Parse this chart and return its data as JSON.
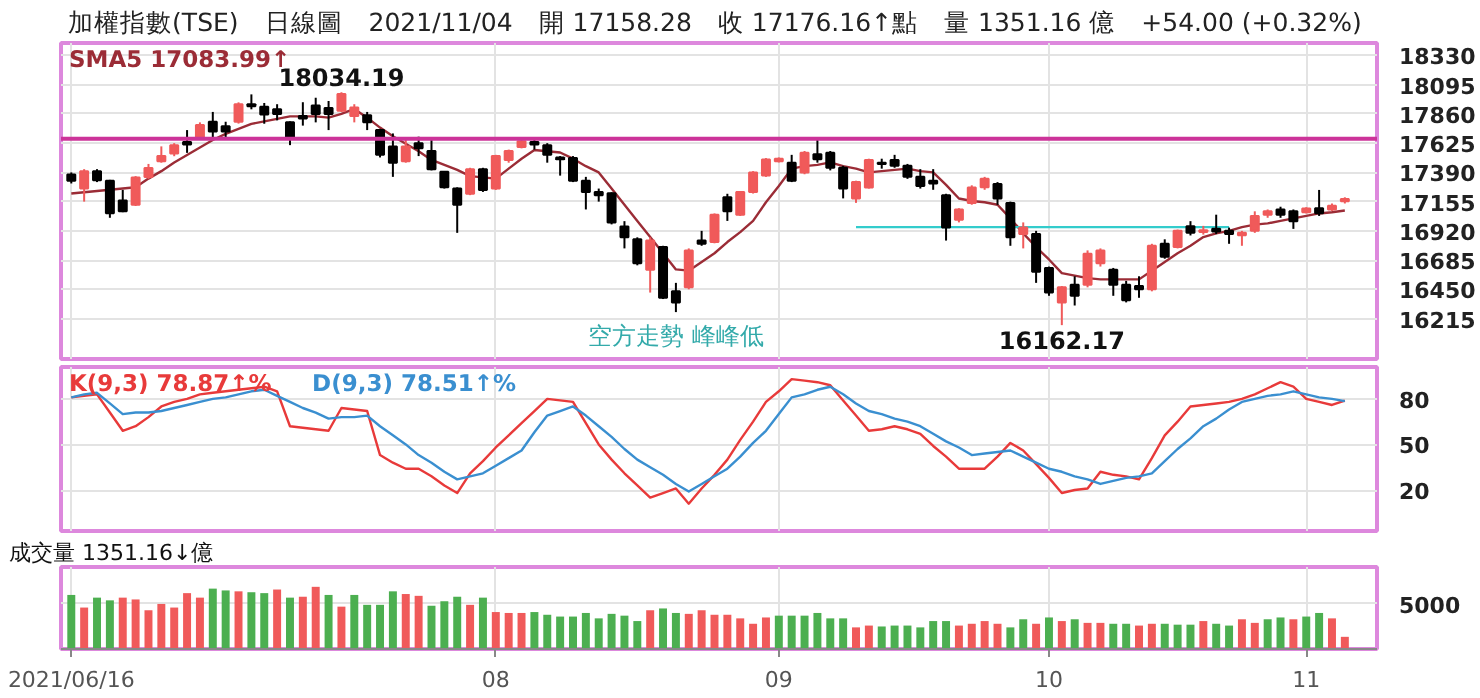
{
  "chart_data": [
    {
      "type": "candlestick",
      "title": "加權指數(TSE)　日線圖　2021/11/04　開 17158.28　收 17176.16↑點　量 1351.16 億　+54.00 (+0.32%)",
      "annotations": [
        "18034.19",
        "16162.17",
        "空方走勢 峰峰低"
      ],
      "categories": [
        "2021/06/16",
        null,
        null,
        null,
        null,
        null,
        null,
        null,
        null,
        null,
        null,
        null,
        null,
        null,
        null,
        null,
        null,
        null,
        null,
        null,
        null,
        null,
        null,
        null,
        null,
        null,
        null,
        null,
        null,
        null,
        null,
        null,
        null,
        "08",
        null,
        null,
        null,
        null,
        null,
        null,
        null,
        null,
        null,
        null,
        null,
        null,
        null,
        null,
        null,
        null,
        null,
        null,
        null,
        null,
        null,
        "09",
        null,
        null,
        null,
        null,
        null,
        null,
        null,
        null,
        null,
        null,
        null,
        null,
        null,
        null,
        null,
        null,
        null,
        null,
        null,
        null,
        "10",
        null,
        null,
        null,
        null,
        null,
        null,
        null,
        null,
        null,
        null,
        null,
        null,
        null,
        null,
        null,
        null,
        null,
        null,
        null,
        "11",
        null,
        null,
        null
      ],
      "ohlc": [
        [
          17374,
          17390,
          17301,
          17322
        ],
        [
          17260,
          17416,
          17155,
          17400
        ],
        [
          17400,
          17416,
          17312,
          17327
        ],
        [
          17322,
          17330,
          17025,
          17061
        ],
        [
          17165,
          17249,
          17070,
          17077
        ],
        [
          17129,
          17360,
          17120,
          17348
        ],
        [
          17353,
          17458,
          17338,
          17426
        ],
        [
          17479,
          17599,
          17468,
          17521
        ],
        [
          17541,
          17625,
          17520,
          17609
        ],
        [
          17635,
          17730,
          17547,
          17614
        ],
        [
          17667,
          17792,
          17651,
          17771
        ],
        [
          17797,
          17876,
          17651,
          17719
        ],
        [
          17761,
          17797,
          17667,
          17719
        ],
        [
          17797,
          17953,
          17782,
          17938
        ],
        [
          17938,
          18017,
          17897,
          17922
        ],
        [
          17917,
          17948,
          17781,
          17855
        ],
        [
          17897,
          17938,
          17808,
          17860
        ],
        [
          17792,
          17800,
          17609,
          17667
        ],
        [
          17844,
          17954,
          17766,
          17823
        ],
        [
          17928,
          17990,
          17792,
          17860
        ],
        [
          17907,
          17964,
          17730,
          17860
        ],
        [
          17886,
          18034.19,
          17876,
          18020
        ],
        [
          17844,
          17938,
          17792,
          17912
        ],
        [
          17850,
          17876,
          17730,
          17792
        ],
        [
          17730,
          17740,
          17510,
          17531
        ],
        [
          17599,
          17703,
          17354,
          17468
        ],
        [
          17479,
          17651,
          17468,
          17599
        ],
        [
          17625,
          17677,
          17521,
          17583
        ],
        [
          17562,
          17651,
          17406,
          17416
        ],
        [
          17395,
          17400,
          17260,
          17270
        ],
        [
          17260,
          17270,
          16904,
          17129
        ],
        [
          17218,
          17427,
          17207,
          17416
        ],
        [
          17416,
          17427,
          17233,
          17249
        ],
        [
          17260,
          17531,
          17249,
          17521
        ],
        [
          17489,
          17573,
          17468,
          17562
        ],
        [
          17594,
          17651,
          17583,
          17641
        ],
        [
          17635,
          17651,
          17573,
          17614
        ],
        [
          17609,
          17625,
          17468,
          17531
        ],
        [
          17510,
          17521,
          17364,
          17495
        ],
        [
          17505,
          17521,
          17312,
          17322
        ],
        [
          17322,
          17354,
          17092,
          17233
        ],
        [
          17233,
          17260,
          17155,
          17207
        ],
        [
          17223,
          17230,
          16972,
          16988
        ],
        [
          16956,
          16998,
          16779,
          16868
        ],
        [
          16852,
          16868,
          16643,
          16659
        ],
        [
          16607,
          16868,
          16424,
          16842
        ],
        [
          16790,
          16800,
          16372,
          16382
        ],
        [
          16434,
          16502,
          16267,
          16345
        ],
        [
          16466,
          16779,
          16450,
          16763
        ],
        [
          16842,
          16920,
          16800,
          16816
        ],
        [
          16831,
          17060,
          16820,
          17050
        ],
        [
          17191,
          17218,
          17000,
          17077
        ],
        [
          17050,
          17233,
          17040,
          17233
        ],
        [
          17233,
          17400,
          17220,
          17390
        ],
        [
          17364,
          17505,
          17354,
          17494
        ],
        [
          17479,
          17510,
          17470,
          17499
        ],
        [
          17468,
          17531,
          17312,
          17322
        ],
        [
          17390,
          17562,
          17375,
          17547
        ],
        [
          17536,
          17651,
          17468,
          17495
        ],
        [
          17547,
          17562,
          17406,
          17427
        ],
        [
          17427,
          17443,
          17181,
          17260
        ],
        [
          17181,
          17323,
          17145,
          17312
        ],
        [
          17269,
          17500,
          17260,
          17489
        ],
        [
          17468,
          17500,
          17420,
          17458
        ],
        [
          17489,
          17531,
          17427,
          17443
        ],
        [
          17443,
          17458,
          17338,
          17354
        ],
        [
          17354,
          17416,
          17260,
          17281
        ],
        [
          17322,
          17416,
          17250,
          17301
        ],
        [
          17207,
          17218,
          16842,
          16946
        ],
        [
          17009,
          17102,
          16988,
          17092
        ],
        [
          17144,
          17286,
          17130,
          17269
        ],
        [
          17270,
          17354,
          17250,
          17338
        ],
        [
          17296,
          17312,
          17129,
          17181
        ],
        [
          17144,
          17155,
          16800,
          16868
        ],
        [
          16894,
          16988,
          16779,
          16946
        ],
        [
          16894,
          16920,
          16502,
          16591
        ],
        [
          16622,
          16633,
          16398,
          16424
        ],
        [
          16345,
          16476,
          16162.17,
          16466
        ],
        [
          16487,
          16555,
          16320,
          16398
        ],
        [
          16487,
          16763,
          16466,
          16737
        ],
        [
          16659,
          16779,
          16633,
          16763
        ],
        [
          16607,
          16622,
          16398,
          16487
        ],
        [
          16487,
          16518,
          16345,
          16362
        ],
        [
          16476,
          16555,
          16382,
          16450
        ],
        [
          16450,
          16816,
          16434,
          16800
        ],
        [
          16816,
          16852,
          16696,
          16711
        ],
        [
          16790,
          16930,
          16779,
          16920
        ],
        [
          16957,
          16998,
          16883,
          16904
        ],
        [
          16910,
          16960,
          16890,
          16925
        ],
        [
          16936,
          17050,
          16894,
          16915
        ],
        [
          16920,
          16946,
          16816,
          16894
        ],
        [
          16884,
          16920,
          16800,
          16904
        ],
        [
          16920,
          17077,
          16904,
          17040
        ],
        [
          17050,
          17092,
          17025,
          17077
        ],
        [
          17092,
          17114,
          17025,
          17050
        ],
        [
          17077,
          17092,
          16936,
          16998
        ],
        [
          17070,
          17110,
          17060,
          17100
        ],
        [
          17102,
          17249,
          17040,
          17061
        ],
        [
          17092,
          17140,
          17080,
          17122.16
        ],
        [
          17158.28,
          17190,
          17140,
          17176.16
        ]
      ],
      "colors": [
        "#000000",
        "#f05a5a",
        "#000000",
        "#000000",
        "#000000",
        "#f05a5a",
        "#f05a5a",
        "#f05a5a",
        "#f05a5a",
        "#000000",
        "#f05a5a",
        "#000000",
        "#000000",
        "#f05a5a",
        "#000000",
        "#000000",
        "#000000",
        "#000000",
        "#000000",
        "#000000",
        "#000000",
        "#f05a5a",
        "#f05a5a",
        "#000000",
        "#000000",
        "#000000",
        "#f05a5a",
        "#000000",
        "#000000",
        "#000000",
        "#000000",
        "#f05a5a",
        "#000000",
        "#f05a5a",
        "#f05a5a",
        "#f05a5a",
        "#000000",
        "#000000",
        "#000000",
        "#000000",
        "#000000",
        "#000000",
        "#000000",
        "#000000",
        "#000000",
        "#f05a5a",
        "#000000",
        "#000000",
        "#f05a5a",
        "#000000",
        "#f05a5a",
        "#000000",
        "#f05a5a",
        "#f05a5a",
        "#f05a5a",
        "#f05a5a",
        "#000000",
        "#f05a5a",
        "#000000",
        "#000000",
        "#000000",
        "#f05a5a",
        "#f05a5a",
        "#000000",
        "#000000",
        "#000000",
        "#000000",
        "#000000",
        "#000000",
        "#f05a5a",
        "#f05a5a",
        "#f05a5a",
        "#000000",
        "#000000",
        "#f05a5a",
        "#000000",
        "#000000",
        "#f05a5a",
        "#000000",
        "#f05a5a",
        "#f05a5a",
        "#000000",
        "#000000",
        "#000000",
        "#f05a5a",
        "#000000",
        "#f05a5a",
        "#000000",
        "#f05a5a",
        "#000000",
        "#000000",
        "#f05a5a",
        "#f05a5a",
        "#f05a5a",
        "#000000",
        "#000000",
        "#f05a5a",
        "#000000",
        "#f05a5a",
        "#f05a5a"
      ],
      "series": [
        {
          "name": "SMA5 17083.99↑",
          "type": "line",
          "color": "#9b2c36",
          "values": [
            17220,
            17230,
            17240,
            17250,
            17260,
            17270,
            17340,
            17400,
            17470,
            17530,
            17590,
            17650,
            17700,
            17740,
            17780,
            17800,
            17820,
            17840,
            17840,
            17840,
            17830,
            17860,
            17900,
            17830,
            17750,
            17680,
            17620,
            17560,
            17490,
            17450,
            17410,
            17360,
            17350,
            17340,
            17420,
            17500,
            17570,
            17560,
            17550,
            17500,
            17440,
            17390,
            17260,
            17130,
            17000,
            16870,
            16740,
            16610,
            16600,
            16670,
            16740,
            16830,
            16910,
            17000,
            17150,
            17280,
            17420,
            17440,
            17450,
            17470,
            17440,
            17420,
            17390,
            17400,
            17410,
            17420,
            17400,
            17390,
            17290,
            17180,
            17160,
            17150,
            17130,
            17020,
            16900,
            16790,
            16690,
            16580,
            16560,
            16540,
            16530,
            16530,
            16530,
            16530,
            16600,
            16670,
            16740,
            16800,
            16870,
            16900,
            16920,
            16950,
            16970,
            16980,
            17000,
            17020,
            17040,
            17060,
            17070,
            17083.99
          ]
        },
        {
          "type": "line",
          "color": "#33cccc",
          "values": [
            null,
            null,
            null,
            null,
            null,
            null,
            null,
            null,
            null,
            null,
            null,
            null,
            null,
            null,
            null,
            null,
            null,
            null,
            null,
            null,
            null,
            null,
            null,
            null,
            null,
            null,
            null,
            null,
            null,
            null,
            null,
            null,
            null,
            null,
            null,
            null,
            null,
            null,
            null,
            null,
            null,
            null,
            null,
            null,
            null,
            null,
            null,
            null,
            null,
            null,
            null,
            null,
            null,
            null,
            null,
            null,
            null,
            null,
            null,
            null,
            null,
            16950,
            16950,
            16950,
            16950,
            16950,
            16950,
            16950,
            16950,
            16950,
            16950,
            16950,
            16950,
            16950,
            16950,
            16950,
            16950,
            16950,
            16950,
            16950,
            16950,
            16950,
            16950,
            16950,
            16950,
            16950,
            16950,
            16950,
            16950,
            16950,
            16950,
            null,
            null,
            null,
            null,
            null,
            null,
            null,
            null,
            null
          ]
        }
      ],
      "ref_lines": [
        {
          "axis": "y",
          "value": 17660,
          "color": "#cc3399"
        }
      ],
      "ylim": [
        15890,
        18430
      ],
      "yticks": [
        16215,
        16450,
        16685,
        16920,
        17155,
        17390,
        17625,
        17860,
        18095,
        18330
      ],
      "grid": true,
      "legend": "top left",
      "tick_labels": "y"
    },
    {
      "type": "line",
      "categories": [
        "2021/06/16",
        null,
        null,
        null,
        null,
        null,
        null,
        null,
        null,
        null,
        null,
        null,
        null,
        null,
        null,
        null,
        null,
        null,
        null,
        null,
        null,
        null,
        null,
        null,
        null,
        null,
        null,
        null,
        null,
        null,
        null,
        null,
        null,
        "08",
        null,
        null,
        null,
        null,
        null,
        null,
        null,
        null,
        null,
        null,
        null,
        null,
        null,
        null,
        null,
        null,
        null,
        null,
        null,
        null,
        null,
        "09",
        null,
        null,
        null,
        null,
        null,
        null,
        null,
        null,
        null,
        null,
        null,
        null,
        null,
        null,
        null,
        null,
        null,
        null,
        null,
        null,
        "10",
        null,
        null,
        null,
        null,
        null,
        null,
        null,
        null,
        null,
        null,
        null,
        null,
        null,
        null,
        null,
        null,
        null,
        null,
        null,
        "11",
        null,
        null,
        null
      ],
      "series": [
        {
          "name": "K(9,3) 78.87↑%",
          "color": "#e83a3a",
          "values": [
            81,
            82,
            83,
            71,
            59,
            62,
            68,
            75,
            78,
            80,
            83,
            84,
            85,
            86,
            87,
            88,
            85,
            62,
            61,
            60,
            59,
            74,
            73,
            72,
            43,
            38,
            34,
            34,
            29,
            23,
            18,
            31,
            39,
            48,
            56,
            64,
            72,
            80,
            79,
            78,
            64,
            50,
            40,
            31,
            23,
            15,
            18,
            21,
            11,
            21,
            30,
            40,
            53,
            65,
            78,
            85,
            93,
            92,
            91,
            89,
            79,
            69,
            59,
            60,
            62,
            60,
            57,
            49,
            42,
            34,
            34,
            34,
            42,
            51,
            46,
            37,
            28,
            18,
            20,
            21,
            32,
            30,
            29,
            27,
            41,
            56,
            65,
            75,
            76,
            77,
            78,
            80,
            83,
            87,
            91,
            88,
            80,
            78,
            76,
            78.87
          ]
        },
        {
          "name": "D(9,3) 78.51↑%",
          "color": "#3a8fd0",
          "values": [
            81,
            83,
            84,
            77,
            70,
            71,
            71,
            72,
            74,
            76,
            78,
            80,
            81,
            83,
            85,
            86,
            82,
            78,
            74,
            71,
            67,
            68,
            68,
            69,
            62,
            56,
            50,
            43,
            38,
            32,
            27,
            29,
            31,
            36,
            41,
            46,
            58,
            69,
            72,
            75,
            69,
            62,
            55,
            47,
            40,
            35,
            30,
            24,
            19,
            24,
            29,
            34,
            42,
            51,
            59,
            70,
            81,
            83,
            86,
            88,
            83,
            77,
            72,
            70,
            67,
            65,
            62,
            57,
            52,
            48,
            43,
            44,
            45,
            46,
            42,
            38,
            34,
            32,
            29,
            27,
            24,
            26,
            28,
            29,
            31,
            39,
            47,
            54,
            62,
            67,
            73,
            78,
            80,
            82,
            83,
            85,
            83,
            81,
            80,
            78.51
          ]
        }
      ],
      "ylim": [
        -7,
        101
      ],
      "yticks": [
        20,
        50,
        80
      ],
      "grid": true,
      "legend": "top left",
      "tick_labels": "y"
    },
    {
      "type": "bar",
      "categories": [
        "2021/06/16",
        null,
        null,
        null,
        null,
        null,
        null,
        null,
        null,
        null,
        null,
        null,
        null,
        null,
        null,
        null,
        null,
        null,
        null,
        null,
        null,
        null,
        null,
        null,
        null,
        null,
        null,
        null,
        null,
        null,
        null,
        null,
        null,
        "08",
        null,
        null,
        null,
        null,
        null,
        null,
        null,
        null,
        null,
        null,
        null,
        null,
        null,
        null,
        null,
        null,
        null,
        null,
        null,
        null,
        null,
        "09",
        null,
        null,
        null,
        null,
        null,
        null,
        null,
        null,
        null,
        null,
        null,
        null,
        null,
        null,
        null,
        null,
        null,
        null,
        null,
        null,
        "10",
        null,
        null,
        null,
        null,
        null,
        null,
        null,
        null,
        null,
        null,
        null,
        null,
        null,
        null,
        null,
        null,
        null,
        null,
        null,
        "11",
        null,
        null,
        null
      ],
      "values": [
        6000,
        4600,
        5700,
        5400,
        5700,
        5500,
        4300,
        5000,
        4600,
        6200,
        5700,
        6700,
        6500,
        6400,
        6300,
        6200,
        6600,
        5700,
        5800,
        6900,
        6000,
        4700,
        6000,
        4900,
        4900,
        6400,
        6100,
        5900,
        4800,
        5300,
        5800,
        4900,
        5700,
        4100,
        4000,
        4000,
        4100,
        3800,
        3600,
        3600,
        4000,
        3400,
        3900,
        3700,
        3100,
        4300,
        4500,
        4000,
        3900,
        4300,
        3800,
        3800,
        3400,
        2800,
        3500,
        3700,
        3700,
        3700,
        4000,
        3400,
        3400,
        2400,
        2600,
        2500,
        2600,
        2600,
        2400,
        3100,
        3100,
        2600,
        2800,
        3100,
        2800,
        2400,
        3300,
        2800,
        3500,
        3100,
        3300,
        2900,
        2900,
        2800,
        2800,
        2600,
        2800,
        2800,
        2700,
        2700,
        3100,
        2800,
        2600,
        3300,
        2900,
        3300,
        3500,
        3300,
        3600,
        4000,
        3400,
        1351.16
      ],
      "colors": [
        "#4caf50",
        "#f05a5a",
        "#4caf50",
        "#4caf50",
        "#f05a5a",
        "#f05a5a",
        "#f05a5a",
        "#f05a5a",
        "#f05a5a",
        "#f05a5a",
        "#f05a5a",
        "#4caf50",
        "#4caf50",
        "#f05a5a",
        "#4caf50",
        "#4caf50",
        "#f05a5a",
        "#4caf50",
        "#f05a5a",
        "#f05a5a",
        "#4caf50",
        "#f05a5a",
        "#4caf50",
        "#4caf50",
        "#4caf50",
        "#4caf50",
        "#f05a5a",
        "#f05a5a",
        "#4caf50",
        "#4caf50",
        "#4caf50",
        "#f05a5a",
        "#4caf50",
        "#f05a5a",
        "#f05a5a",
        "#f05a5a",
        "#4caf50",
        "#4caf50",
        "#4caf50",
        "#4caf50",
        "#4caf50",
        "#4caf50",
        "#4caf50",
        "#4caf50",
        "#4caf50",
        "#f05a5a",
        "#4caf50",
        "#4caf50",
        "#f05a5a",
        "#f05a5a",
        "#f05a5a",
        "#f05a5a",
        "#f05a5a",
        "#f05a5a",
        "#f05a5a",
        "#4caf50",
        "#4caf50",
        "#4caf50",
        "#4caf50",
        "#4caf50",
        "#4caf50",
        "#f05a5a",
        "#f05a5a",
        "#4caf50",
        "#4caf50",
        "#4caf50",
        "#4caf50",
        "#4caf50",
        "#4caf50",
        "#f05a5a",
        "#f05a5a",
        "#f05a5a",
        "#f05a5a",
        "#4caf50",
        "#4caf50",
        "#f05a5a",
        "#4caf50",
        "#f05a5a",
        "#4caf50",
        "#f05a5a",
        "#f05a5a",
        "#4caf50",
        "#4caf50",
        "#f05a5a",
        "#f05a5a",
        "#4caf50",
        "#4caf50",
        "#4caf50",
        "#f05a5a",
        "#4caf50",
        "#4caf50",
        "#f05a5a",
        "#f05a5a",
        "#4caf50",
        "#4caf50",
        "#f05a5a",
        "#4caf50",
        "#4caf50",
        "#f05a5a",
        "#f05a5a"
      ],
      "annotations": [
        "成交量 1351.16↓億"
      ],
      "ylim": [
        0,
        9100
      ],
      "yticks": [
        {
          "value": 0,
          "label": null
        },
        5000
      ],
      "grid": true
    }
  ]
}
